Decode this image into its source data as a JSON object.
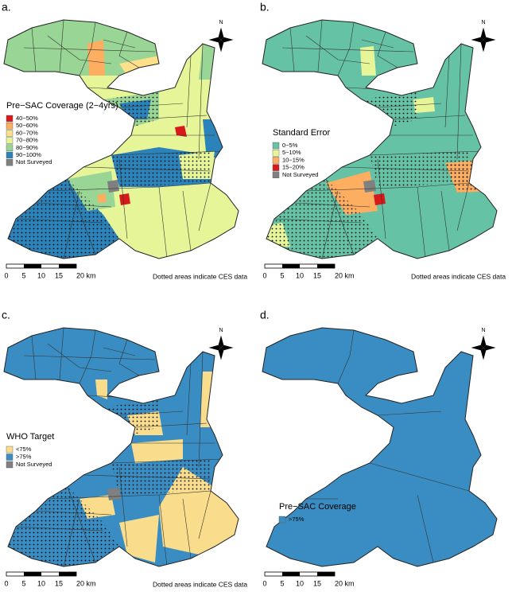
{
  "panels": [
    {
      "label": "a.",
      "legend_title": "Pre−SAC Coverage (2−4yrs)",
      "legend": [
        {
          "label": "40−50%",
          "color": "#d7191c"
        },
        {
          "label": "50−60%",
          "color": "#fdae61"
        },
        {
          "label": "60−70%",
          "color": "#fee08b"
        },
        {
          "label": "70−80%",
          "color": "#e6f598"
        },
        {
          "label": "80−90%",
          "color": "#99d594"
        },
        {
          "label": "90−100%",
          "color": "#2b83ba"
        },
        {
          "label": "Not Surveyed",
          "color": "#808080"
        }
      ],
      "note": "Dotted areas indicate CES data"
    },
    {
      "label": "b.",
      "legend_title": "Standard Error",
      "legend": [
        {
          "label": "0−5%",
          "color": "#66c2a5"
        },
        {
          "label": "5−10%",
          "color": "#e6f598"
        },
        {
          "label": "10−15%",
          "color": "#fdae61"
        },
        {
          "label": "15−20%",
          "color": "#d7191c"
        },
        {
          "label": "Not Surveyed",
          "color": "#808080"
        }
      ],
      "note": "Dotted areas indicate CES data"
    },
    {
      "label": "c.",
      "legend_title": "WHO Target",
      "legend": [
        {
          "label": "<75%",
          "color": "#f9dd8c"
        },
        {
          "label": ">75%",
          "color": "#3a8dc2"
        },
        {
          "label": "Not Surveyed",
          "color": "#808080"
        }
      ],
      "note": "Dotted areas indicate CES data"
    },
    {
      "label": "d.",
      "legend_title": "Pre−SAC Coverage",
      "legend": [
        {
          "label": ">75%",
          "color": "#3a8dc2"
        }
      ]
    }
  ],
  "north": "N",
  "scale_labels": [
    "0",
    "5",
    "10",
    "15",
    "20 km"
  ]
}
